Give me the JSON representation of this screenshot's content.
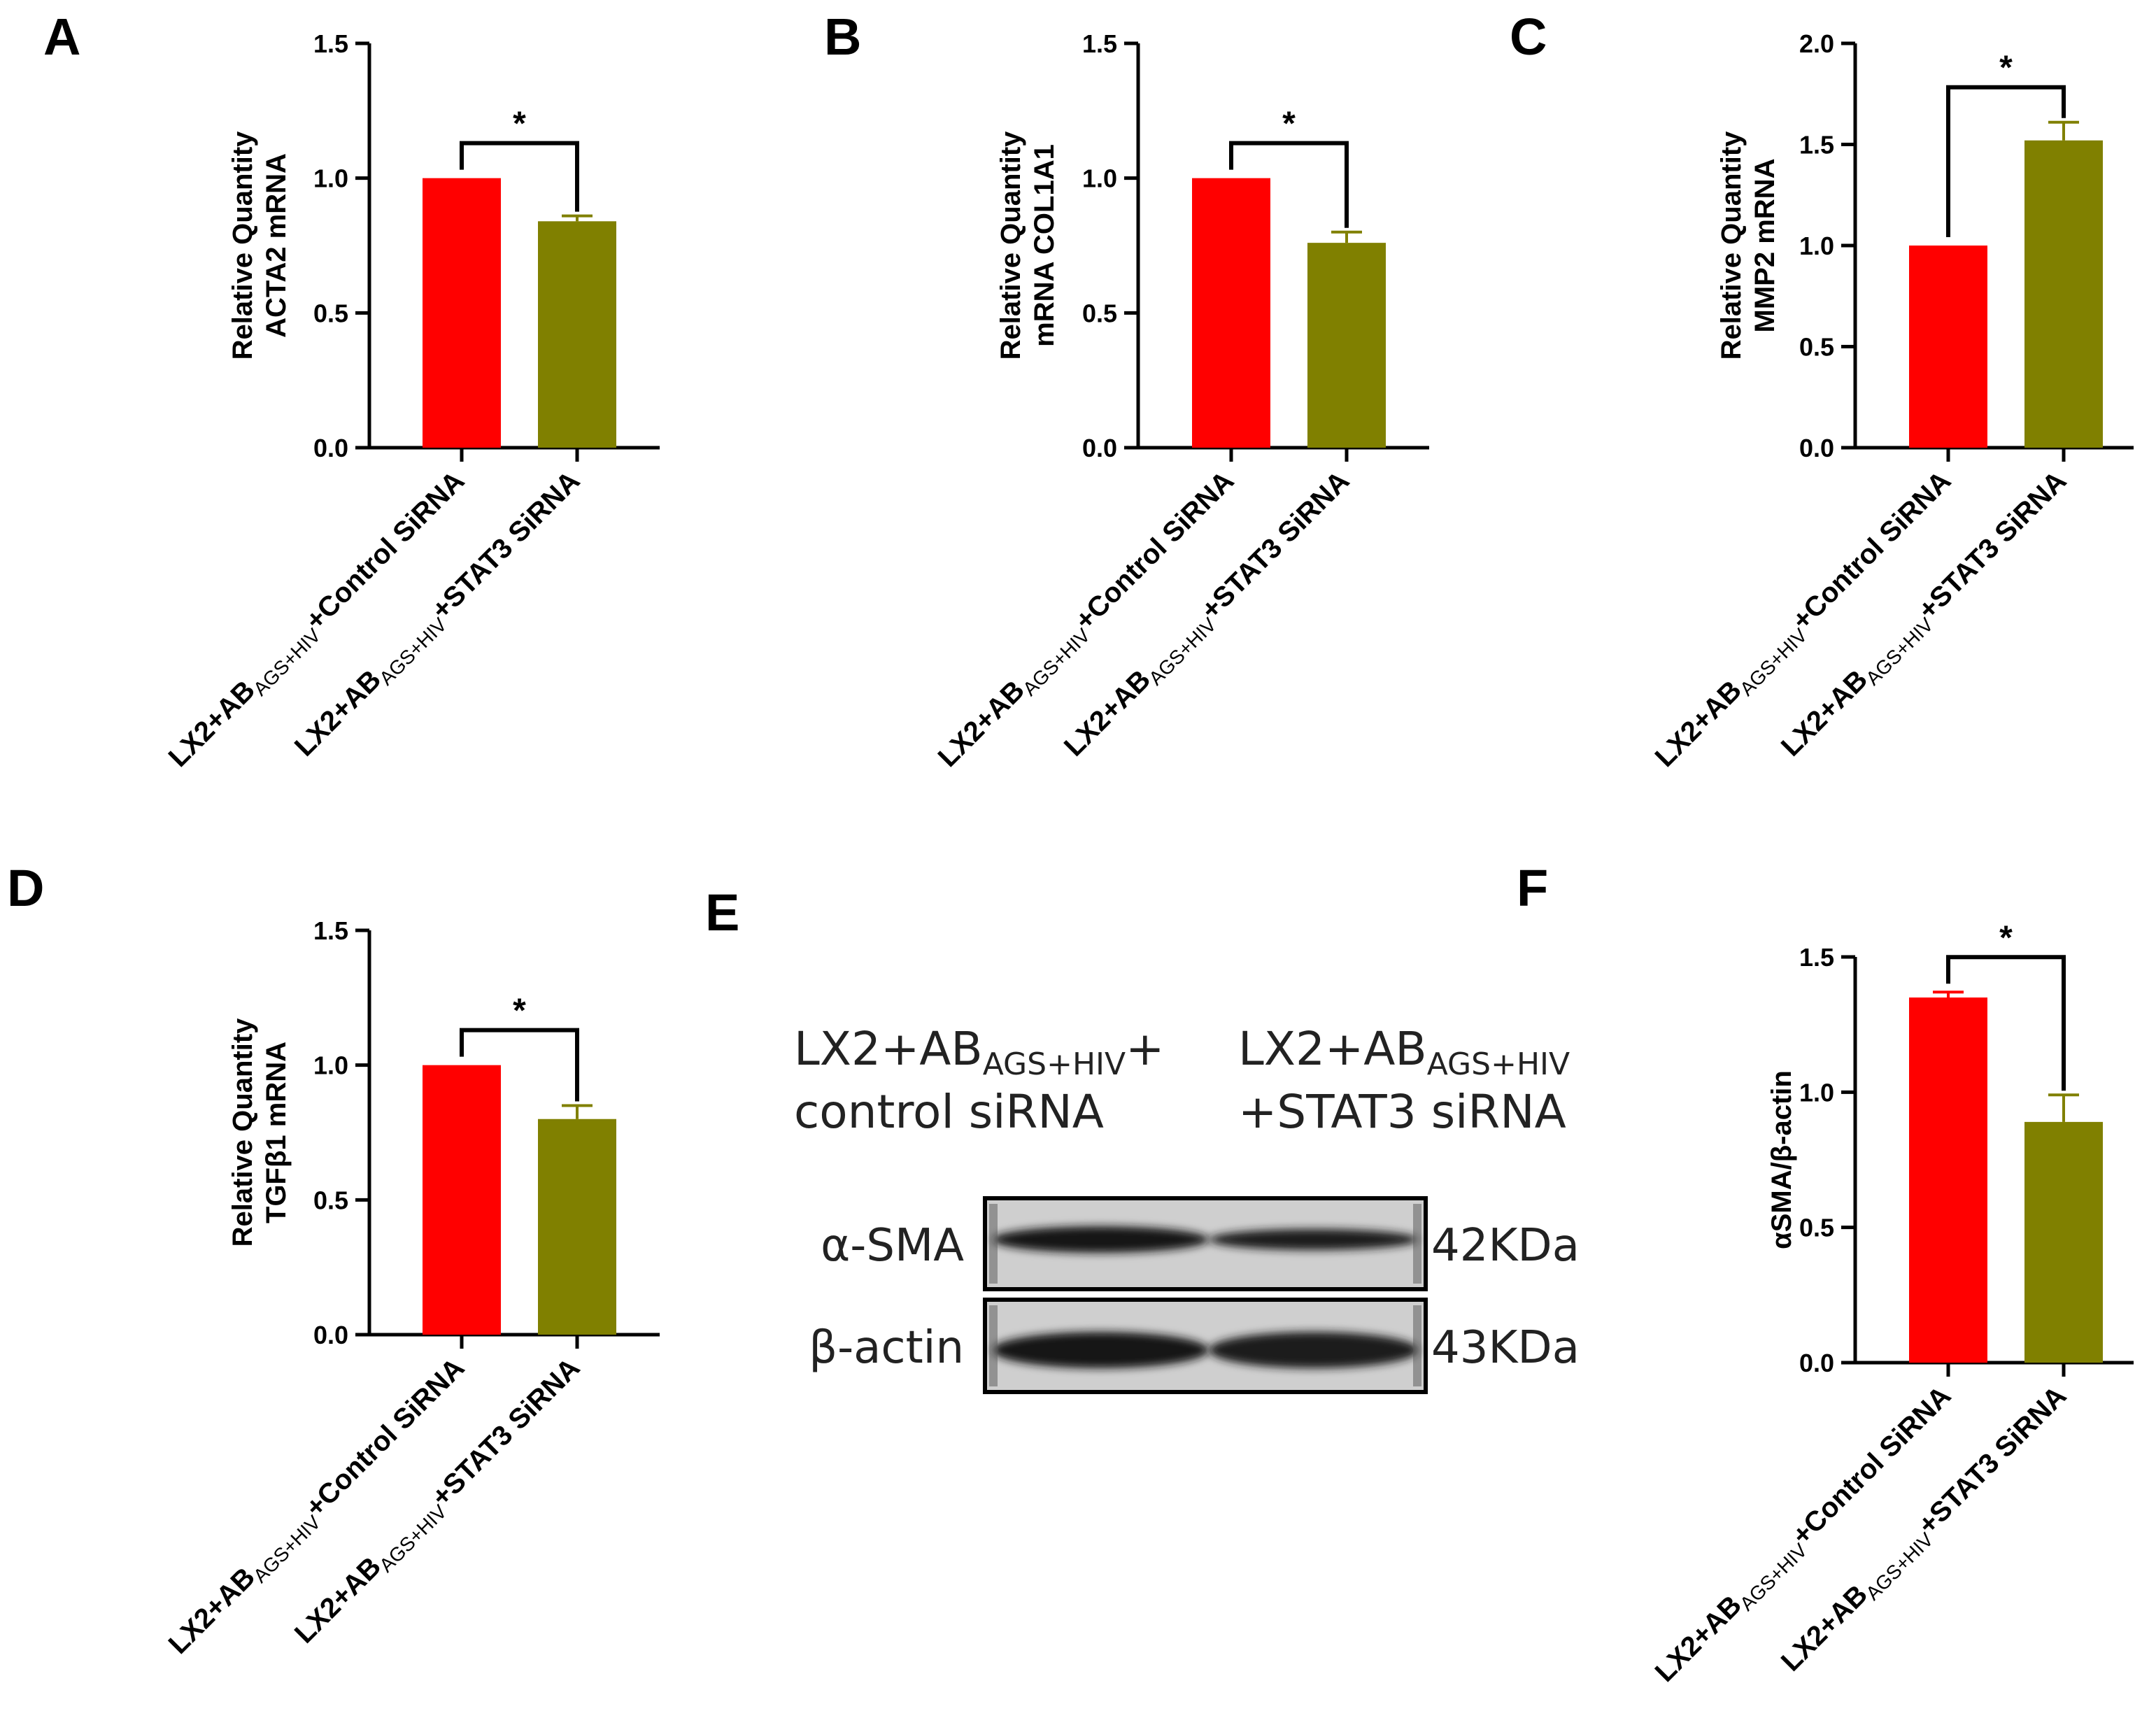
{
  "colors": {
    "control": "#ff0000",
    "stat3": "#808000",
    "axis": "#000000"
  },
  "chart_data": [
    {
      "panel": "A",
      "type": "bar",
      "ylabel": [
        "Relative Quantity",
        "ACTA2 mRNA"
      ],
      "ylim": [
        0,
        1.5
      ],
      "yticks": [
        0.0,
        0.5,
        1.0,
        1.5
      ],
      "tick_labels": [
        "0.0",
        "0.5",
        "1.0",
        "1.5"
      ],
      "categories": [
        {
          "pre": "LX2+AB",
          "sub": "AGS+HIV",
          "post": "+Control SiRNA"
        },
        {
          "pre": "LX2+AB",
          "sub": "AGS+HIV",
          "post": "+STAT3 SiRNA"
        }
      ],
      "values": [
        1.0,
        0.84
      ],
      "errors": [
        0,
        0.02
      ],
      "significance": "*"
    },
    {
      "panel": "B",
      "type": "bar",
      "ylabel": [
        "Relative Quantity",
        "mRNA COL1A1"
      ],
      "ylim": [
        0,
        1.5
      ],
      "yticks": [
        0.0,
        0.5,
        1.0,
        1.5
      ],
      "tick_labels": [
        "0.0",
        "0.5",
        "1.0",
        "1.5"
      ],
      "categories": [
        {
          "pre": "LX2+AB",
          "sub": "AGS+HIV",
          "post": "+Control SiRNA"
        },
        {
          "pre": "LX2+AB",
          "sub": "AGS+HIV",
          "post": "+STAT3 SiRNA"
        }
      ],
      "values": [
        1.0,
        0.76
      ],
      "errors": [
        0,
        0.04
      ],
      "significance": "*"
    },
    {
      "panel": "C",
      "type": "bar",
      "ylabel": [
        "Relative Quantity",
        "MMP2 mRNA"
      ],
      "ylim": [
        0,
        2.0
      ],
      "yticks": [
        0.0,
        0.5,
        1.0,
        1.5,
        2.0
      ],
      "tick_labels": [
        "0.0",
        "0.5",
        "1.0",
        "1.5",
        "2.0"
      ],
      "categories": [
        {
          "pre": "LX2+AB",
          "sub": "AGS+HIV",
          "post": "+Control SiRNA"
        },
        {
          "pre": "LX2+AB",
          "sub": "AGS+HIV",
          "post": "+STAT3 SiRNA"
        }
      ],
      "values": [
        1.0,
        1.52
      ],
      "errors": [
        0,
        0.09
      ],
      "significance": "*"
    },
    {
      "panel": "D",
      "type": "bar",
      "ylabel": [
        "Relative Quantity",
        "TGFβ1 mRNA"
      ],
      "ylim": [
        0,
        1.5
      ],
      "yticks": [
        0.0,
        0.5,
        1.0,
        1.5
      ],
      "tick_labels": [
        "0.0",
        "0.5",
        "1.0",
        "1.5"
      ],
      "categories": [
        {
          "pre": "LX2+AB",
          "sub": "AGS+HIV",
          "post": "+Control SiRNA"
        },
        {
          "pre": "LX2+AB",
          "sub": "AGS+HIV",
          "post": "+STAT3 SiRNA"
        }
      ],
      "values": [
        1.0,
        0.8
      ],
      "errors": [
        0,
        0.05
      ],
      "significance": "*"
    },
    {
      "panel": "F",
      "type": "bar",
      "ylabel": [
        "αSMA/β-actin"
      ],
      "ylim": [
        0,
        1.5
      ],
      "yticks": [
        0.0,
        0.5,
        1.0,
        1.5
      ],
      "tick_labels": [
        "0.0",
        "0.5",
        "1.0",
        "1.5"
      ],
      "categories": [
        {
          "pre": "LX2+AB",
          "sub": "AGS+HIV",
          "post": "+Control SiRNA"
        },
        {
          "pre": "LX2+AB",
          "sub": "AGS+HIV",
          "post": "+STAT3 SiRNA"
        }
      ],
      "values": [
        1.35,
        0.89
      ],
      "errors": [
        0.02,
        0.1
      ],
      "significance": "*"
    }
  ],
  "blot": {
    "panel": "E",
    "lane_headers": [
      {
        "pre": "LX2+AB",
        "sub": "AGS+HIV",
        "post": "+",
        "line2": "control siRNA"
      },
      {
        "pre": "LX2+AB",
        "sub": "AGS+HIV",
        "post": "",
        "line2": "+STAT3 siRNA"
      }
    ],
    "rows": [
      {
        "label": "α-SMA",
        "size": "42KDa"
      },
      {
        "label": "β-actin",
        "size": "43KDa"
      }
    ]
  }
}
